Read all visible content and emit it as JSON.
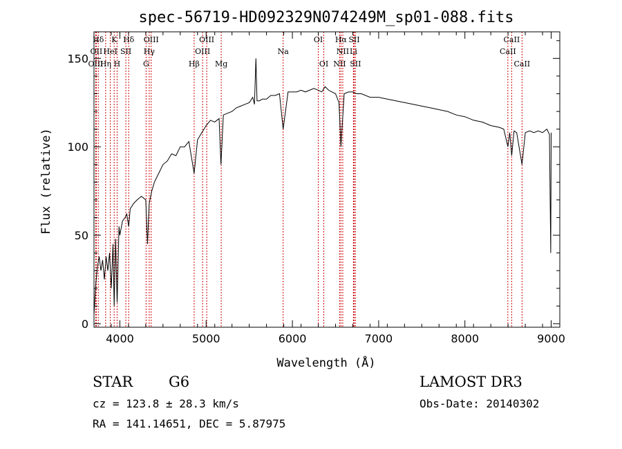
{
  "chart_data": {
    "type": "line",
    "title": "spec-56719-HD092329N074249M_sp01-088.fits",
    "xlabel": "Wavelength (Å)",
    "ylabel": "Flux (relative)",
    "xlim": [
      3700,
      9100
    ],
    "ylim": [
      -2,
      165
    ],
    "x_ticks": [
      4000,
      5000,
      6000,
      7000,
      8000,
      9000
    ],
    "y_ticks": [
      0,
      50,
      100,
      150
    ],
    "grid": false,
    "line_color": "#000000",
    "marker_color": "#cc0000",
    "spectrum": {
      "x": [
        3700,
        3720,
        3740,
        3760,
        3780,
        3800,
        3820,
        3840,
        3860,
        3880,
        3900,
        3920,
        3934,
        3950,
        3968,
        3990,
        4000,
        4030,
        4060,
        4080,
        4102,
        4120,
        4160,
        4200,
        4250,
        4300,
        4320,
        4340,
        4370,
        4400,
        4450,
        4500,
        4550,
        4600,
        4650,
        4700,
        4750,
        4800,
        4861,
        4900,
        4950,
        5000,
        5050,
        5100,
        5150,
        5172,
        5200,
        5250,
        5300,
        5350,
        5400,
        5450,
        5500,
        5540,
        5560,
        5577,
        5590,
        5620,
        5650,
        5700,
        5750,
        5800,
        5850,
        5893,
        5950,
        6000,
        6050,
        6100,
        6150,
        6200,
        6250,
        6300,
        6340,
        6380,
        6420,
        6460,
        6500,
        6540,
        6563,
        6600,
        6650,
        6700,
        6750,
        6800,
        6900,
        7000,
        7100,
        7200,
        7300,
        7400,
        7500,
        7600,
        7700,
        7800,
        7900,
        8000,
        8100,
        8200,
        8300,
        8400,
        8450,
        8498,
        8520,
        8542,
        8570,
        8600,
        8662,
        8700,
        8750,
        8800,
        8850,
        8900,
        8950,
        8980,
        8995,
        9000
      ],
      "y": [
        5,
        22,
        32,
        38,
        30,
        36,
        25,
        38,
        30,
        40,
        20,
        45,
        10,
        48,
        12,
        55,
        50,
        58,
        60,
        62,
        55,
        65,
        68,
        70,
        72,
        70,
        45,
        68,
        75,
        80,
        85,
        90,
        92,
        96,
        95,
        100,
        100,
        103,
        85,
        104,
        108,
        112,
        115,
        114,
        116,
        90,
        118,
        119,
        120,
        122,
        123,
        124,
        125,
        128,
        124,
        150,
        126,
        126,
        127,
        127,
        129,
        129,
        130,
        110,
        131,
        131,
        131,
        132,
        131,
        132,
        133,
        132,
        131,
        134,
        132,
        131,
        130,
        125,
        100,
        130,
        131,
        131,
        130,
        130,
        128,
        128,
        127,
        126,
        125,
        124,
        123,
        122,
        121,
        120,
        118,
        117,
        115,
        114,
        112,
        111,
        110,
        100,
        108,
        95,
        109,
        108,
        90,
        108,
        109,
        108,
        109,
        108,
        110,
        107,
        40,
        108
      ]
    },
    "lines": [
      {
        "label": "Hδ",
        "x": 3750,
        "row": 0
      },
      {
        "label": "OII",
        "x": 3727,
        "row": 1
      },
      {
        "label": "OIII",
        "x": 3720,
        "row": 2
      },
      {
        "label": "K",
        "x": 3934,
        "row": 0
      },
      {
        "label": "HeI",
        "x": 3889,
        "row": 1
      },
      {
        "label": "Hη",
        "x": 3835,
        "row": 2
      },
      {
        "label": "Hδ",
        "x": 4102,
        "row": 0
      },
      {
        "label": "SII",
        "x": 4069,
        "row": 1
      },
      {
        "label": "H",
        "x": 3968,
        "row": 2
      },
      {
        "label": "OIII",
        "x": 4363,
        "row": 0
      },
      {
        "label": "Hγ",
        "x": 4340,
        "row": 1
      },
      {
        "label": "G",
        "x": 4304,
        "row": 2
      },
      {
        "label": "OIII",
        "x": 5007,
        "row": 0
      },
      {
        "label": "OIII",
        "x": 4959,
        "row": 1
      },
      {
        "label": "Hβ",
        "x": 4861,
        "row": 2
      },
      {
        "label": "Mg",
        "x": 5175,
        "row": 2
      },
      {
        "label": "Na",
        "x": 5893,
        "row": 1
      },
      {
        "label": "OI",
        "x": 6300,
        "row": 0
      },
      {
        "label": "OI",
        "x": 6364,
        "row": 2
      },
      {
        "label": "Hα",
        "x": 6563,
        "row": 0
      },
      {
        "label": "SII",
        "x": 6716,
        "row": 0
      },
      {
        "label": "NII",
        "x": 6584,
        "row": 1
      },
      {
        "label": "Li",
        "x": 6708,
        "row": 1
      },
      {
        "label": "NII",
        "x": 6548,
        "row": 2
      },
      {
        "label": "SII",
        "x": 6731,
        "row": 2
      },
      {
        "label": "CaII",
        "x": 8542,
        "row": 0
      },
      {
        "label": "CaII",
        "x": 8498,
        "row": 1
      },
      {
        "label": "CaII",
        "x": 8662,
        "row": 2
      }
    ]
  },
  "info": {
    "class_label": "STAR",
    "subclass": "G6",
    "survey": "LAMOST DR3",
    "cz": "cz = 123.8 ± 28.3 km/s",
    "obs_date": "Obs-Date: 20140302",
    "coords": "RA = 141.14651, DEC =   5.87975"
  }
}
